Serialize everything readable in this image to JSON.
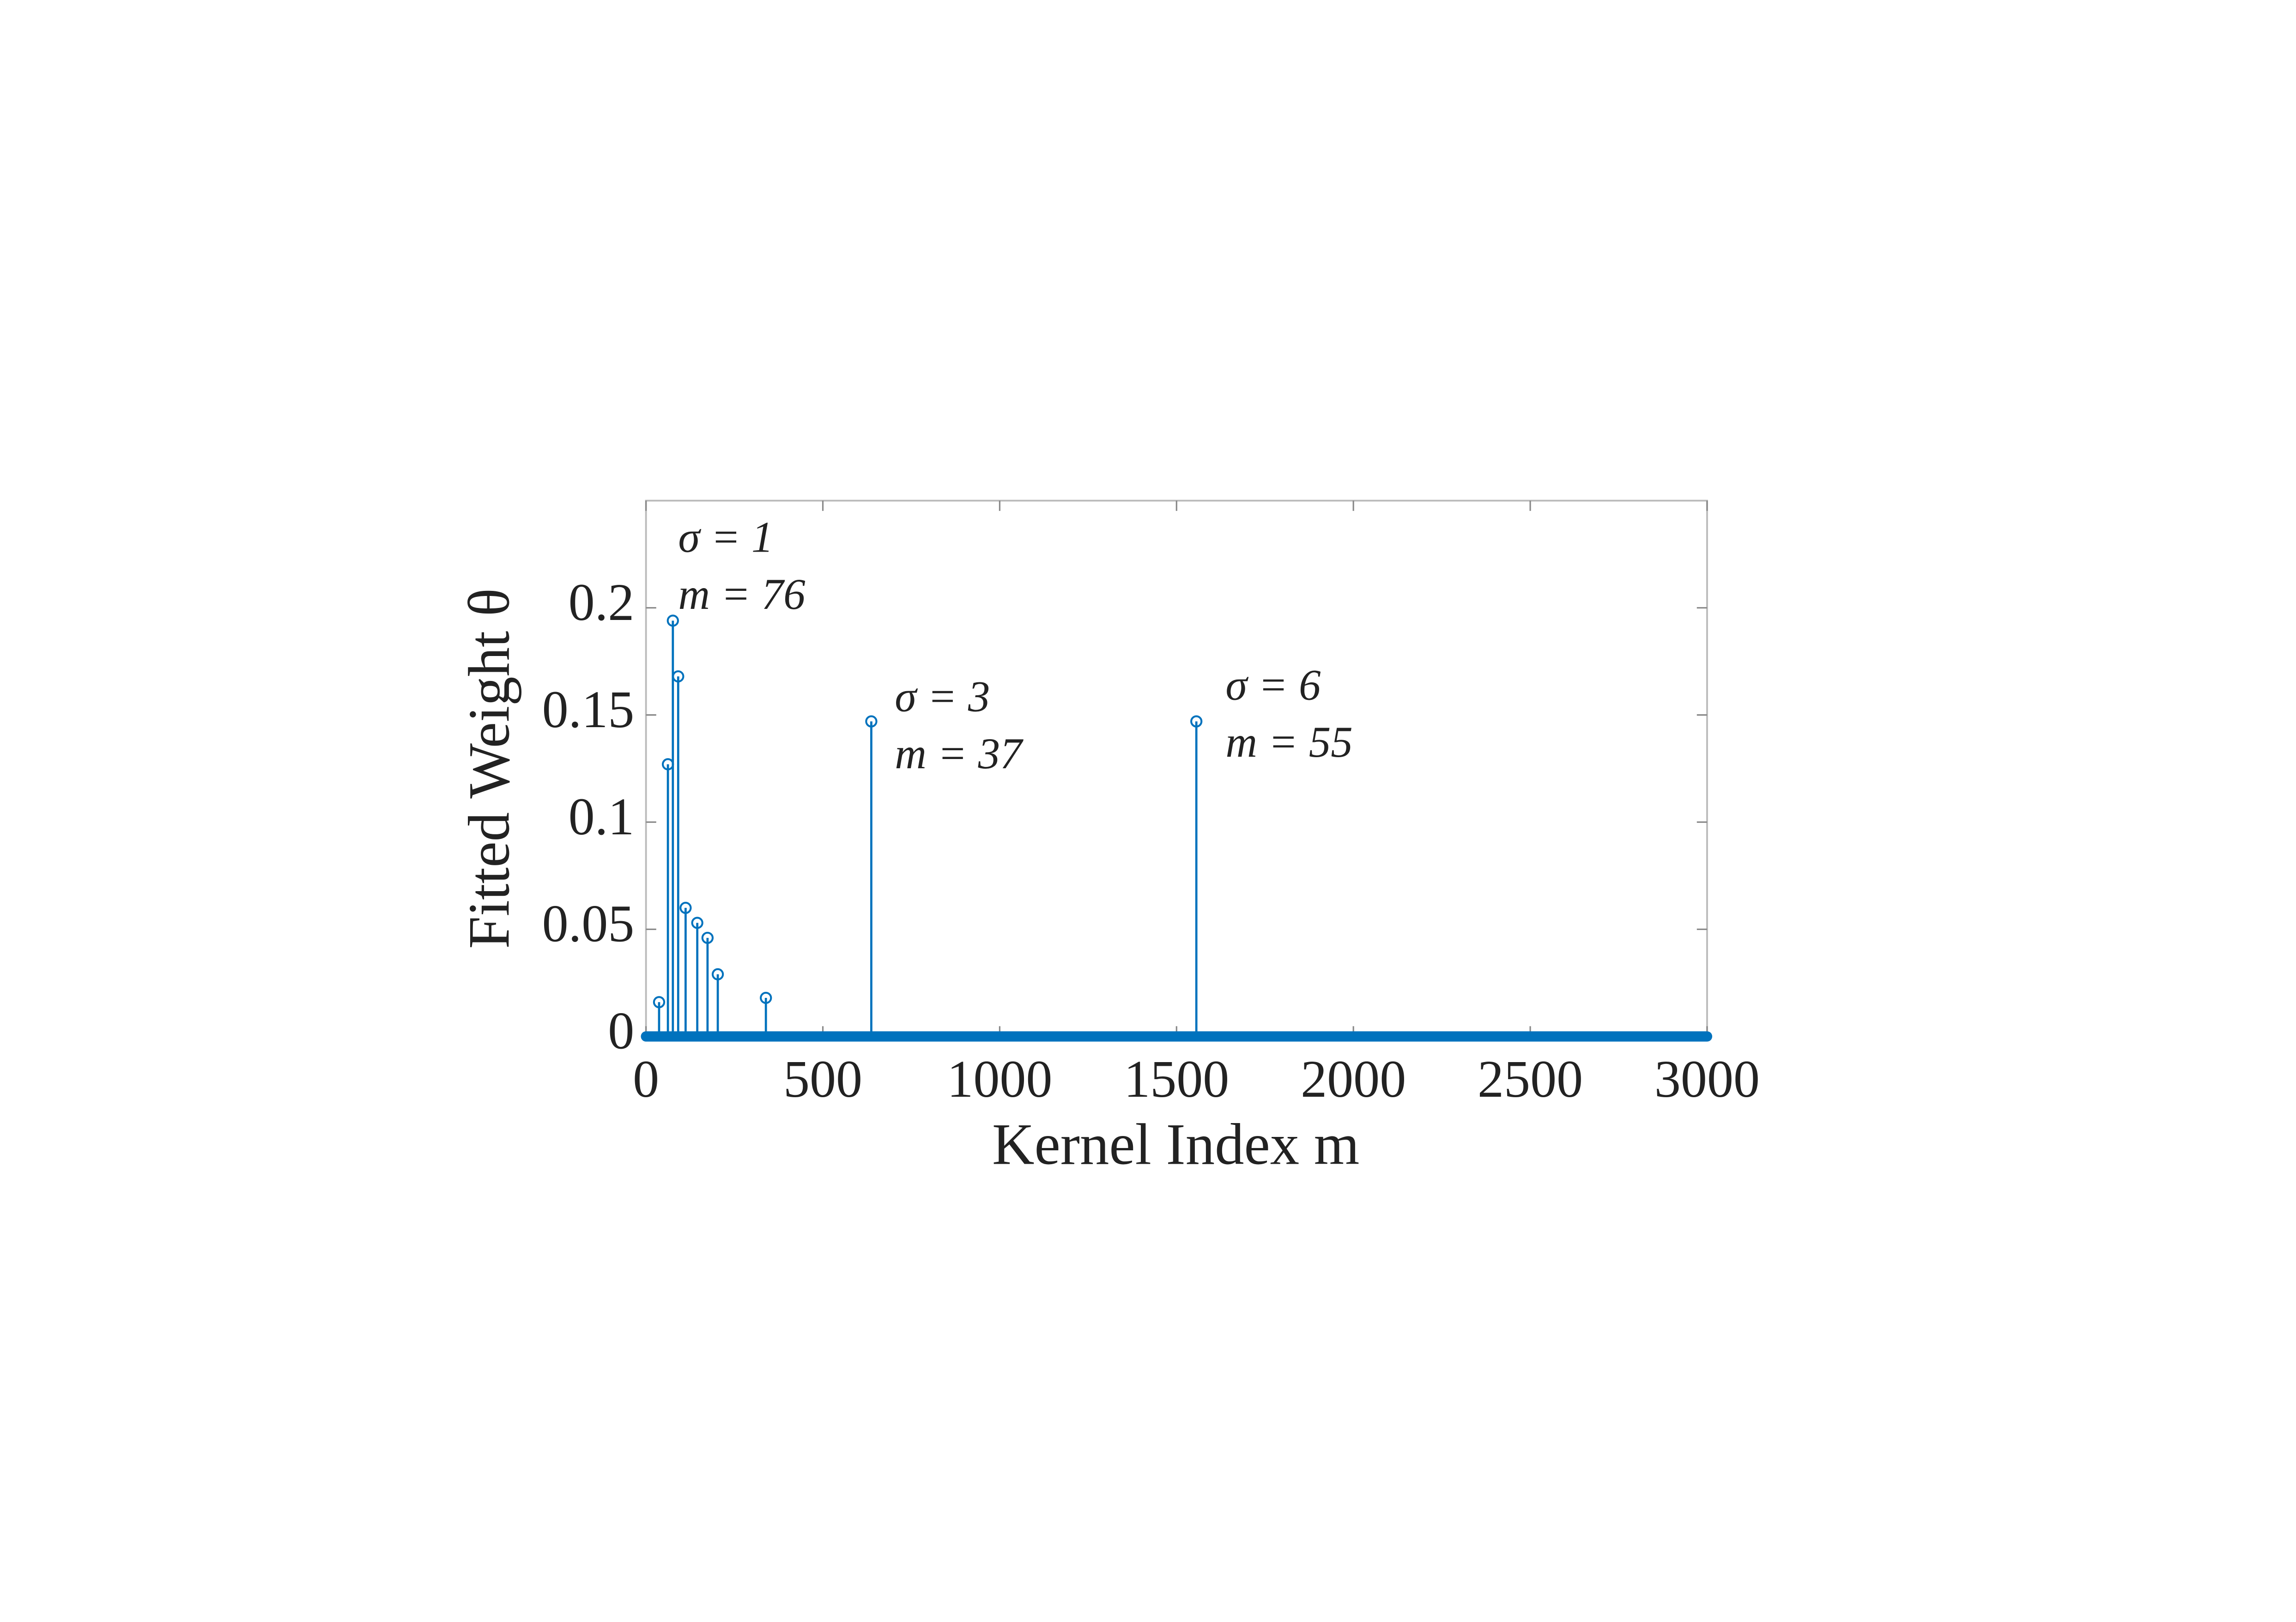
{
  "chart_data": {
    "type": "stem",
    "xlabel": "Kernel Index m",
    "ylabel": "Fitted Weight θ",
    "x": [
      37,
      62,
      76,
      91,
      112,
      145,
      174,
      203,
      339,
      637,
      1556
    ],
    "values": [
      0.016,
      0.127,
      0.194,
      0.168,
      0.06,
      0.053,
      0.046,
      0.029,
      0.018,
      0.147,
      0.147
    ],
    "color": "#0072bd",
    "xlim": [
      0,
      3000
    ],
    "xticks": [
      0,
      500,
      1000,
      1500,
      2000,
      2500,
      3000
    ],
    "ylim": [
      0,
      0.25
    ],
    "yticks": [
      0,
      0.05,
      0.1,
      0.15,
      0.2
    ],
    "grid": false,
    "annotations": [
      [
        "σ = 1",
        "m = 76"
      ],
      [
        "σ = 3",
        "m = 37"
      ],
      [
        "σ = 6",
        "m = 55"
      ]
    ]
  }
}
